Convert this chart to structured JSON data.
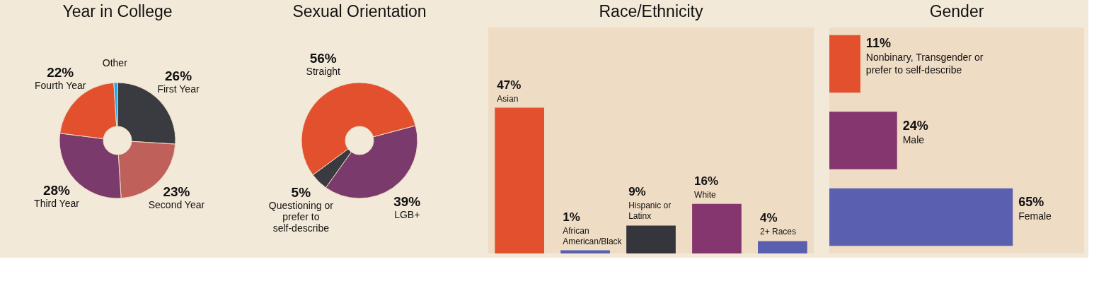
{
  "chart_data": [
    {
      "type": "donut",
      "title": "Year in College",
      "categories": [
        "First Year",
        "Second Year",
        "Third Year",
        "Fourth Year",
        "Other"
      ],
      "values": [
        26,
        23,
        28,
        22,
        1
      ],
      "value_labels": [
        "26%",
        "23%",
        "28%",
        "22%",
        null
      ],
      "colors": [
        "#3a3b40",
        "#c0605a",
        "#7a3a6c",
        "#e2502e",
        "#1fa8e8"
      ]
    },
    {
      "type": "donut",
      "title": "Sexual Orientation",
      "categories": [
        "LGB+",
        "Questioning or prefer to self-describe",
        "Straight"
      ],
      "values": [
        39,
        5,
        56
      ],
      "value_labels": [
        "39%",
        "5%",
        "56%"
      ],
      "colors": [
        "#7a3a6c",
        "#3a3b40",
        "#e2502e"
      ]
    },
    {
      "type": "bar",
      "title": "Race/Ethnicity",
      "categories": [
        "Asian",
        "African American/Black",
        "Hispanic or Latinx",
        "White",
        "2+ Races"
      ],
      "values": [
        47,
        1,
        9,
        16,
        4
      ],
      "value_labels": [
        "47%",
        "1%",
        "9%",
        "16%",
        "4%"
      ],
      "colors": [
        "#e2502e",
        "#5a5fb0",
        "#35363c",
        "#86366e",
        "#5a5fb0"
      ]
    },
    {
      "type": "bar",
      "orientation": "horizontal",
      "title": "Gender",
      "categories": [
        "Nonbinary, Transgender or prefer to self-describe",
        "Male",
        "Female"
      ],
      "values": [
        11,
        24,
        65
      ],
      "value_labels": [
        "11%",
        "24%",
        "65%"
      ],
      "colors": [
        "#e2502e",
        "#86366e",
        "#5a5fb0"
      ]
    }
  ]
}
